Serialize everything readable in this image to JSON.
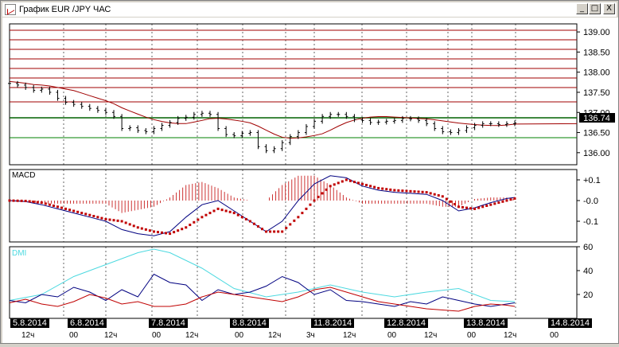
{
  "window": {
    "title": "График EUR /JPY  ЧАС",
    "buttons": {
      "minimize": "_",
      "maximize": "□",
      "close": "X"
    }
  },
  "colors": {
    "price": "#000000",
    "resistance": "#a00000",
    "support": "#008000",
    "moving_avg": "#a00000",
    "macd_line": "#000080",
    "macd_signal": "#c00000",
    "histogram": "#c00000",
    "dmi_adx": "#4dd9e0",
    "dmi_plus": "#000080",
    "dmi_minus": "#c00000"
  },
  "price_panel": {
    "current_price": "136.74",
    "ticks": [
      "139.00",
      "138.50",
      "138.00",
      "137.50",
      "137.00",
      "136.50",
      "136.00"
    ]
  },
  "macd_panel": {
    "label": "MACD",
    "ticks": [
      "+0.1",
      "-0.0",
      "-0.1"
    ]
  },
  "dmi_panel": {
    "label": "DMI",
    "ticks": [
      "60",
      "40",
      "20"
    ]
  },
  "time_axis": {
    "dates": [
      "5.8.2014",
      "6.8.2014",
      "7.8.2014",
      "8.8.2014",
      "11.8.2014",
      "12.8.2014",
      "13.8.2014",
      "14.8.2014"
    ],
    "hours": [
      "12ч",
      "00",
      "12ч",
      "00",
      "12ч",
      "00",
      "12ч",
      "3ч",
      "12ч",
      "00",
      "12ч",
      "00",
      "12ч",
      "00"
    ]
  },
  "chart_data": [
    {
      "type": "line",
      "title": "",
      "ylim": [
        135.7,
        139.2
      ],
      "series": [
        {
          "x": [
            0,
            10,
            20,
            30,
            40,
            50,
            60,
            70,
            80,
            90,
            100,
            110,
            120,
            130,
            140,
            150,
            160,
            170,
            180,
            190,
            200,
            210,
            220,
            230,
            240,
            250,
            260,
            270,
            280,
            290,
            300,
            310,
            320,
            330,
            340,
            350,
            360,
            370,
            380,
            390,
            400,
            410,
            420,
            430,
            440,
            450,
            460,
            470,
            480,
            490,
            500,
            510,
            520,
            530,
            540,
            550,
            560,
            570,
            580,
            590,
            600,
            610,
            620,
            630
          ],
          "values": [
            137.72,
            137.68,
            137.62,
            137.55,
            137.58,
            137.5,
            137.35,
            137.25,
            137.2,
            137.15,
            137.1,
            137.05,
            137.0,
            136.9,
            136.6,
            136.62,
            136.55,
            136.52,
            136.6,
            136.68,
            136.75,
            136.85,
            136.88,
            136.95,
            136.98,
            136.95,
            136.6,
            136.45,
            136.42,
            136.48,
            136.5,
            136.15,
            136.05,
            136.1,
            136.25,
            136.4,
            136.5,
            136.65,
            136.78,
            136.9,
            136.95,
            136.95,
            136.9,
            136.82,
            136.8,
            136.75,
            136.76,
            136.78,
            136.8,
            136.85,
            136.84,
            136.8,
            136.72,
            136.6,
            136.52,
            136.5,
            136.55,
            136.62,
            136.68,
            136.72,
            136.72,
            136.7,
            136.72,
            136.74
          ]
        }
      ]
    },
    {
      "type": "line",
      "title": "",
      "ylim": [
        -0.2,
        0.15
      ],
      "series": [
        {
          "x": [
            0,
            20,
            40,
            60,
            80,
            100,
            120,
            140,
            160,
            180,
            200,
            220,
            240,
            260,
            280,
            300,
            320,
            340,
            360,
            380,
            400,
            420,
            440,
            460,
            480,
            500,
            520,
            540,
            560,
            580,
            600,
            620,
            630
          ],
          "values": [
            0.0,
            -0.005,
            -0.02,
            -0.04,
            -0.06,
            -0.08,
            -0.1,
            -0.14,
            -0.16,
            -0.17,
            -0.15,
            -0.08,
            -0.02,
            0.0,
            -0.05,
            -0.1,
            -0.15,
            -0.1,
            0.0,
            0.08,
            0.12,
            0.11,
            0.07,
            0.05,
            0.04,
            0.035,
            0.03,
            0.0,
            -0.05,
            -0.035,
            -0.01,
            0.01,
            0.015
          ]
        },
        {
          "x": [
            0,
            20,
            40,
            60,
            80,
            100,
            120,
            140,
            160,
            180,
            200,
            220,
            240,
            260,
            280,
            300,
            320,
            340,
            360,
            380,
            400,
            420,
            440,
            460,
            480,
            500,
            520,
            540,
            560,
            580,
            600,
            620,
            630
          ],
          "values": [
            0.0,
            -0.002,
            -0.01,
            -0.03,
            -0.05,
            -0.07,
            -0.09,
            -0.1,
            -0.13,
            -0.15,
            -0.16,
            -0.13,
            -0.08,
            -0.04,
            -0.06,
            -0.1,
            -0.15,
            -0.15,
            -0.08,
            0.0,
            0.07,
            0.1,
            0.08,
            0.06,
            0.05,
            0.045,
            0.04,
            0.02,
            -0.03,
            -0.04,
            -0.02,
            0.0,
            0.01
          ]
        }
      ]
    },
    {
      "type": "line",
      "title": "",
      "ylim": [
        0,
        60
      ],
      "series": [
        {
          "x": [
            0,
            40,
            80,
            120,
            160,
            180,
            200,
            240,
            280,
            320,
            360,
            400,
            440,
            480,
            520,
            560,
            600,
            630
          ],
          "values": [
            15,
            20,
            35,
            45,
            55,
            58,
            55,
            42,
            25,
            18,
            22,
            28,
            22,
            18,
            22,
            25,
            15,
            14
          ]
        },
        {
          "x": [
            0,
            20,
            40,
            60,
            80,
            100,
            120,
            140,
            160,
            180,
            200,
            220,
            240,
            260,
            280,
            300,
            320,
            340,
            360,
            380,
            400,
            420,
            440,
            460,
            480,
            500,
            520,
            540,
            560,
            580,
            600,
            620,
            630
          ],
          "values": [
            15,
            13,
            20,
            18,
            26,
            22,
            15,
            24,
            18,
            37,
            30,
            28,
            15,
            24,
            20,
            22,
            27,
            35,
            30,
            20,
            24,
            15,
            14,
            12,
            10,
            14,
            12,
            18,
            15,
            12,
            10,
            12,
            13
          ]
        },
        {
          "x": [
            0,
            20,
            40,
            60,
            80,
            100,
            120,
            140,
            160,
            180,
            200,
            220,
            240,
            260,
            280,
            300,
            320,
            340,
            360,
            380,
            400,
            420,
            440,
            460,
            480,
            500,
            520,
            540,
            560,
            580,
            600,
            620,
            630
          ],
          "values": [
            13,
            16,
            12,
            10,
            14,
            20,
            17,
            12,
            14,
            10,
            10,
            12,
            18,
            22,
            20,
            18,
            16,
            14,
            18,
            24,
            26,
            22,
            18,
            14,
            12,
            10,
            8,
            7,
            6,
            10,
            12,
            11,
            10
          ]
        }
      ]
    }
  ]
}
